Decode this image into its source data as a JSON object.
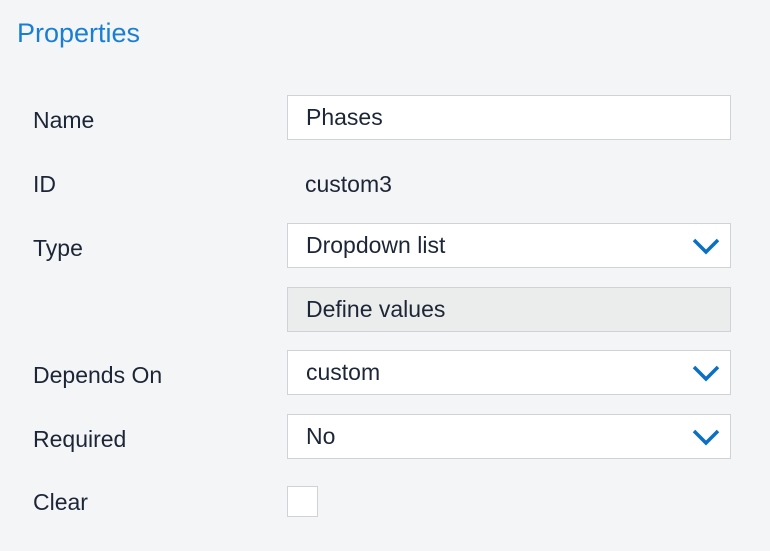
{
  "panel": {
    "title": "Properties"
  },
  "fields": {
    "name": {
      "label": "Name",
      "value": "Phases"
    },
    "id": {
      "label": "ID",
      "value": "custom3"
    },
    "type": {
      "label": "Type",
      "value": "Dropdown list"
    },
    "define_values": {
      "label": "Define values"
    },
    "depends_on": {
      "label": "Depends On",
      "value": "custom"
    },
    "required": {
      "label": "Required",
      "value": "No"
    },
    "clear": {
      "label": "Clear",
      "checked": false
    }
  },
  "colors": {
    "accent": "#1a7fd4",
    "chevron": "#0b6fc4"
  }
}
